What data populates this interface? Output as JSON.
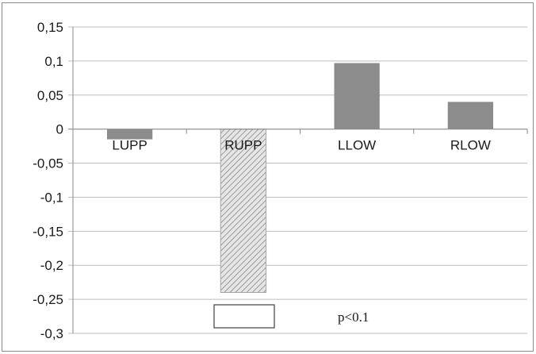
{
  "chart_data": {
    "type": "bar",
    "categories": [
      "LUPP",
      "RUPP",
      "LLOW",
      "RLOW"
    ],
    "values": [
      -0.015,
      -0.24,
      0.097,
      0.04
    ],
    "bar_styles": [
      "solid",
      "hatched",
      "solid",
      "solid"
    ],
    "y_ticks": [
      "0,15",
      "0,1",
      "0,05",
      "0",
      "-0,05",
      "-0,1",
      "-0,15",
      "-0,2",
      "-0,25",
      "-0,3"
    ],
    "ylim": [
      -0.3,
      0.15
    ],
    "grid": true,
    "legend": {
      "label": "p<0.1",
      "placement": "bottom"
    },
    "colors": {
      "bar": "#8c8c8c",
      "hatch": "#a6a6a6",
      "grid": "#bdbdbd",
      "axis": "#8a8a8a"
    }
  }
}
